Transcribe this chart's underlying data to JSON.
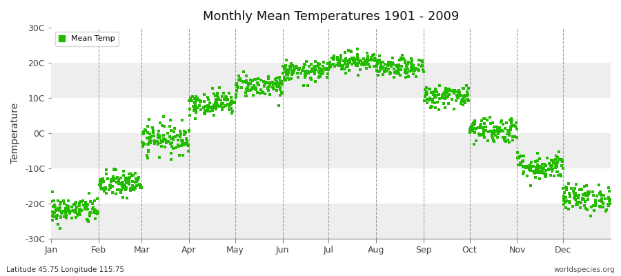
{
  "title": "Monthly Mean Temperatures 1901 - 2009",
  "ylabel": "Temperature",
  "background_color": "#ffffff",
  "plot_bg_color": "#ffffff",
  "band_color": "#eeeeee",
  "dot_color": "#22bb00",
  "dot_size": 6,
  "ylim": [
    -30,
    30
  ],
  "yticks": [
    -30,
    -20,
    -10,
    0,
    10,
    20,
    30
  ],
  "ytick_labels": [
    "-30C",
    "-20C",
    "-10C",
    "0C",
    "10C",
    "20C",
    "30C"
  ],
  "months": [
    "Jan",
    "Feb",
    "Mar",
    "Apr",
    "May",
    "Jun",
    "Jul",
    "Aug",
    "Sep",
    "Oct",
    "Nov",
    "Dec"
  ],
  "mean_temps": [
    -22.0,
    -14.5,
    -1.5,
    8.5,
    13.5,
    17.5,
    20.5,
    18.5,
    10.5,
    1.0,
    -9.5,
    -18.5
  ],
  "spread": [
    3.5,
    3.5,
    4.0,
    3.0,
    3.0,
    2.5,
    2.5,
    2.5,
    3.0,
    3.5,
    3.5,
    3.5
  ],
  "n_years": 109,
  "subtitle_left": "Latitude 45.75 Longitude 115.75",
  "subtitle_right": "worldspecies.org",
  "legend_label": "Mean Temp",
  "days_in_month": [
    31,
    28,
    31,
    30,
    31,
    30,
    31,
    31,
    30,
    31,
    30,
    31
  ]
}
